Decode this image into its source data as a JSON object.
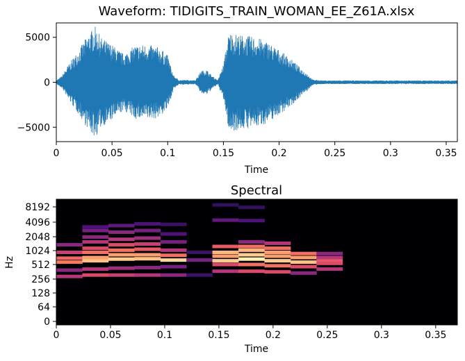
{
  "chart_data": [
    {
      "type": "line",
      "title": "Waveform: TIDIGITS_TRAIN_WOMAN_EE_Z61A.xlsx",
      "xlabel": "Time",
      "ylabel": "",
      "xlim": [
        0,
        0.36
      ],
      "ylim": [
        -6600,
        6600
      ],
      "x_ticks": [
        "0",
        "0.05",
        "0.1",
        "0.15",
        "0.2",
        "0.25",
        "0.3",
        "0.35"
      ],
      "x_tick_values": [
        0,
        0.05,
        0.1,
        0.15,
        0.2,
        0.25,
        0.3,
        0.35
      ],
      "y_ticks": [
        "5000",
        "0",
        "−5000"
      ],
      "y_tick_values": [
        5000,
        0,
        -5000
      ],
      "color": "#1f77b4",
      "envelope": {
        "time": [
          0,
          0.005,
          0.01,
          0.02,
          0.03,
          0.035,
          0.04,
          0.05,
          0.06,
          0.065,
          0.07,
          0.08,
          0.09,
          0.095,
          0.1,
          0.105,
          0.11,
          0.12,
          0.125,
          0.13,
          0.135,
          0.14,
          0.145,
          0.15,
          0.155,
          0.16,
          0.17,
          0.18,
          0.19,
          0.2,
          0.21,
          0.22,
          0.225,
          0.23,
          0.24,
          0.36
        ],
        "amplitude": [
          200,
          700,
          1800,
          3600,
          5600,
          6200,
          5000,
          4200,
          3200,
          3500,
          4100,
          4200,
          4000,
          3600,
          3000,
          800,
          250,
          250,
          250,
          1300,
          1400,
          700,
          250,
          2000,
          5600,
          5400,
          5200,
          5000,
          4500,
          3600,
          2700,
          1500,
          1000,
          300,
          200,
          200
        ]
      }
    },
    {
      "type": "heatmap",
      "title": "Spectral",
      "xlabel": "Time",
      "ylabel": "Hz",
      "xlim": [
        0,
        0.37
      ],
      "x_ticks": [
        "0",
        "0.05",
        "0.1",
        "0.15",
        "0.2",
        "0.25",
        "0.3",
        "0.35"
      ],
      "x_tick_values": [
        0,
        0.05,
        0.1,
        0.15,
        0.2,
        0.25,
        0.3,
        0.35
      ],
      "y_ticks": [
        "8192",
        "4096",
        "2048",
        "1024",
        "512",
        "256",
        "128",
        "64",
        "0"
      ],
      "y_scale": "log",
      "colormap": "magma",
      "frame_times": [
        0,
        0.024,
        0.048,
        0.072,
        0.096,
        0.12,
        0.144,
        0.168,
        0.192,
        0.216,
        0.24
      ],
      "frames": [
        [
          [
            280,
            0.5
          ],
          [
            380,
            0.4
          ],
          [
            560,
            0.72
          ],
          [
            680,
            0.68
          ],
          [
            900,
            0.55
          ],
          [
            1300,
            0.4
          ]
        ],
        [
          [
            300,
            0.6
          ],
          [
            400,
            0.5
          ],
          [
            600,
            0.88
          ],
          [
            700,
            0.8
          ],
          [
            900,
            0.7
          ],
          [
            1100,
            0.6
          ],
          [
            1500,
            0.5
          ],
          [
            1900,
            0.4
          ],
          [
            2600,
            0.35
          ],
          [
            3100,
            0.25
          ]
        ],
        [
          [
            300,
            0.55
          ],
          [
            420,
            0.45
          ],
          [
            650,
            0.9
          ],
          [
            800,
            0.8
          ],
          [
            1000,
            0.7
          ],
          [
            1300,
            0.6
          ],
          [
            1700,
            0.5
          ],
          [
            2400,
            0.4
          ],
          [
            3300,
            0.3
          ]
        ],
        [
          [
            300,
            0.5
          ],
          [
            430,
            0.4
          ],
          [
            660,
            0.88
          ],
          [
            800,
            0.8
          ],
          [
            1050,
            0.65
          ],
          [
            1350,
            0.55
          ],
          [
            1800,
            0.45
          ],
          [
            2600,
            0.35
          ],
          [
            3600,
            0.25
          ]
        ],
        [
          [
            300,
            0.4
          ],
          [
            450,
            0.35
          ],
          [
            620,
            0.92
          ],
          [
            780,
            0.7
          ],
          [
            1000,
            0.5
          ],
          [
            1500,
            0.35
          ],
          [
            2200,
            0.25
          ],
          [
            3500,
            0.2
          ]
        ],
        [
          [
            300,
            0.2
          ],
          [
            620,
            0.35
          ],
          [
            900,
            0.2
          ]
        ],
        [
          [
            360,
            0.5
          ],
          [
            500,
            0.6
          ],
          [
            600,
            0.9
          ],
          [
            750,
            0.8
          ],
          [
            900,
            0.85
          ],
          [
            1200,
            0.65
          ],
          [
            4300,
            0.3
          ],
          [
            9000,
            0.18
          ]
        ],
        [
          [
            360,
            0.6
          ],
          [
            500,
            0.7
          ],
          [
            650,
            0.97
          ],
          [
            800,
            0.9
          ],
          [
            1000,
            0.85
          ],
          [
            1200,
            0.7
          ],
          [
            1500,
            0.4
          ],
          [
            4200,
            0.25
          ],
          [
            8000,
            0.18
          ]
        ],
        [
          [
            350,
            0.6
          ],
          [
            470,
            0.7
          ],
          [
            600,
            0.9
          ],
          [
            750,
            0.8
          ],
          [
            900,
            0.8
          ],
          [
            1100,
            0.7
          ],
          [
            1400,
            0.5
          ]
        ],
        [
          [
            330,
            0.4
          ],
          [
            450,
            0.6
          ],
          [
            560,
            0.88
          ],
          [
            700,
            0.8
          ],
          [
            850,
            0.7
          ]
        ],
        [
          [
            400,
            0.5
          ],
          [
            530,
            0.6
          ],
          [
            620,
            0.65
          ],
          [
            700,
            0.5
          ],
          [
            850,
            0.4
          ]
        ]
      ]
    }
  ]
}
